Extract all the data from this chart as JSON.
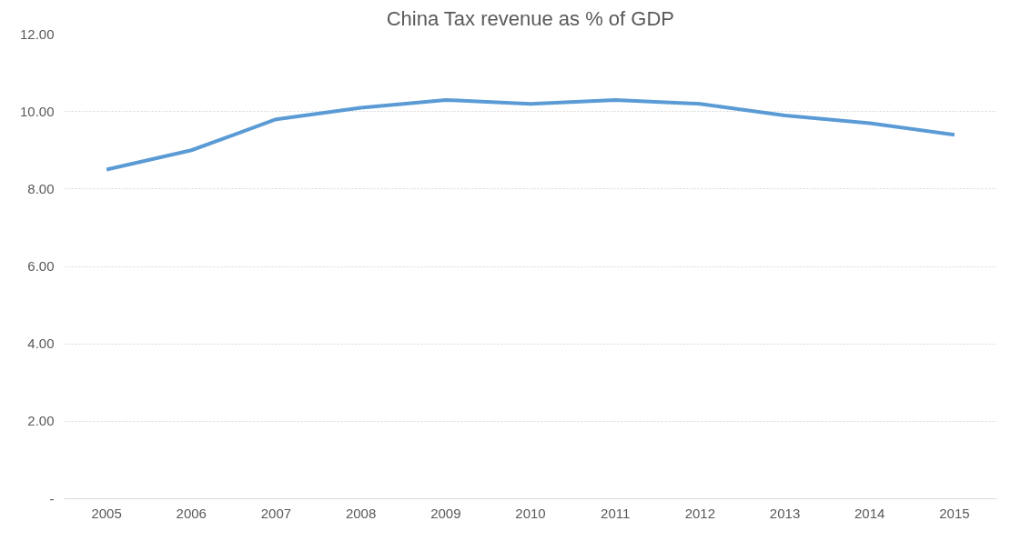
{
  "chart_data": {
    "type": "line",
    "title": "China Tax revenue as % of GDP",
    "categories": [
      "2005",
      "2006",
      "2007",
      "2008",
      "2009",
      "2010",
      "2011",
      "2012",
      "2013",
      "2014",
      "2015"
    ],
    "series": [
      {
        "color": "#5b9bd5",
        "values": [
          8.5,
          9.0,
          9.8,
          10.1,
          10.3,
          10.2,
          10.3,
          10.2,
          9.9,
          9.7,
          9.4
        ]
      }
    ],
    "ylim": [
      0,
      12
    ],
    "yticks": [
      {
        "value": 0,
        "label": "-"
      },
      {
        "value": 2,
        "label": "2.00"
      },
      {
        "value": 4,
        "label": "4.00"
      },
      {
        "value": 6,
        "label": "6.00"
      },
      {
        "value": 8,
        "label": "8.00"
      },
      {
        "value": 10,
        "label": "10.00"
      },
      {
        "value": 12,
        "label": "12.00"
      }
    ],
    "grid": "y",
    "marker": "none",
    "line_style": "solid"
  }
}
